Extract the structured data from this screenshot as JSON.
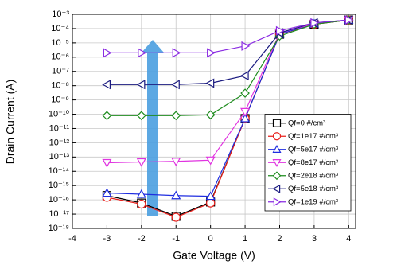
{
  "chart_data": {
    "type": "line",
    "y_scale": "log",
    "grid": true,
    "legend_position": "lower right",
    "xlabel": "Gate Voltage (V)",
    "ylabel": "Drain Current (A)",
    "xlim": [
      -4,
      4.2
    ],
    "xticks": [
      -4,
      -3,
      -2,
      -1,
      0,
      1,
      2,
      3,
      4
    ],
    "ylim": [
      1e-18,
      0.001
    ],
    "yticks": [
      {
        "value": 1e-18,
        "label": "10⁻¹⁸"
      },
      {
        "value": 1e-17,
        "label": "10⁻¹⁷"
      },
      {
        "value": 1e-16,
        "label": "10⁻¹⁶"
      },
      {
        "value": 1e-15,
        "label": "10⁻¹⁵"
      },
      {
        "value": 1e-14,
        "label": "10⁻¹⁴"
      },
      {
        "value": 1e-13,
        "label": "10⁻¹³"
      },
      {
        "value": 1e-12,
        "label": "10⁻¹²"
      },
      {
        "value": 1e-11,
        "label": "10⁻¹¹"
      },
      {
        "value": 1e-10,
        "label": "10⁻¹⁰"
      },
      {
        "value": 1e-09,
        "label": "10⁻⁹"
      },
      {
        "value": 1e-08,
        "label": "10⁻⁸"
      },
      {
        "value": 1e-07,
        "label": "10⁻⁷"
      },
      {
        "value": 1e-06,
        "label": "10⁻⁶"
      },
      {
        "value": 1e-05,
        "label": "10⁻⁵"
      },
      {
        "value": 0.0001,
        "label": "10⁻⁴"
      },
      {
        "value": 0.001,
        "label": "10⁻³"
      }
    ],
    "x": [
      -3,
      -2,
      -1,
      0,
      1,
      2,
      3,
      4
    ],
    "series": [
      {
        "name": "Qf=0 #/cm³",
        "color": "#000000",
        "marker": "square",
        "values": [
          2e-16,
          6e-17,
          7e-18,
          7e-17,
          5e-11,
          4e-05,
          0.0002,
          0.0004
        ]
      },
      {
        "name": "Qf=1e17 #/cm³",
        "color": "#e8201c",
        "marker": "circle",
        "values": [
          1.5e-16,
          5e-17,
          6e-18,
          6e-17,
          5e-11,
          4e-05,
          0.0002,
          0.0004
        ]
      },
      {
        "name": "Qf=5e17 #/cm³",
        "color": "#1f2de0",
        "marker": "triangle-up",
        "values": [
          3e-16,
          2.5e-16,
          2e-16,
          1.8e-16,
          5e-11,
          4e-05,
          0.00022,
          0.0004
        ]
      },
      {
        "name": "Qf=8e17 #/cm³",
        "color": "#e033e0",
        "marker": "triangle-down",
        "values": [
          4e-14,
          4.5e-14,
          5e-14,
          6e-14,
          1.5e-10,
          5e-05,
          0.00022,
          0.0004
        ]
      },
      {
        "name": "Qf=2e18 #/cm³",
        "color": "#1e8c1e",
        "marker": "diamond",
        "values": [
          8e-11,
          8e-11,
          8e-11,
          9e-11,
          3e-09,
          3e-05,
          0.0002,
          0.0004
        ]
      },
      {
        "name": "Qf=5e18 #/cm³",
        "color": "#1b1b80",
        "marker": "triangle-left",
        "values": [
          1.2e-08,
          1.2e-08,
          1.2e-08,
          1.5e-08,
          5e-08,
          5e-05,
          0.00025,
          0.0004
        ]
      },
      {
        "name": "Qf=1e19 #/cm³",
        "color": "#8a2be2",
        "marker": "triangle-right",
        "values": [
          2e-06,
          2e-06,
          2e-06,
          2e-06,
          6e-06,
          7e-05,
          0.00025,
          0.0004
        ]
      }
    ]
  }
}
